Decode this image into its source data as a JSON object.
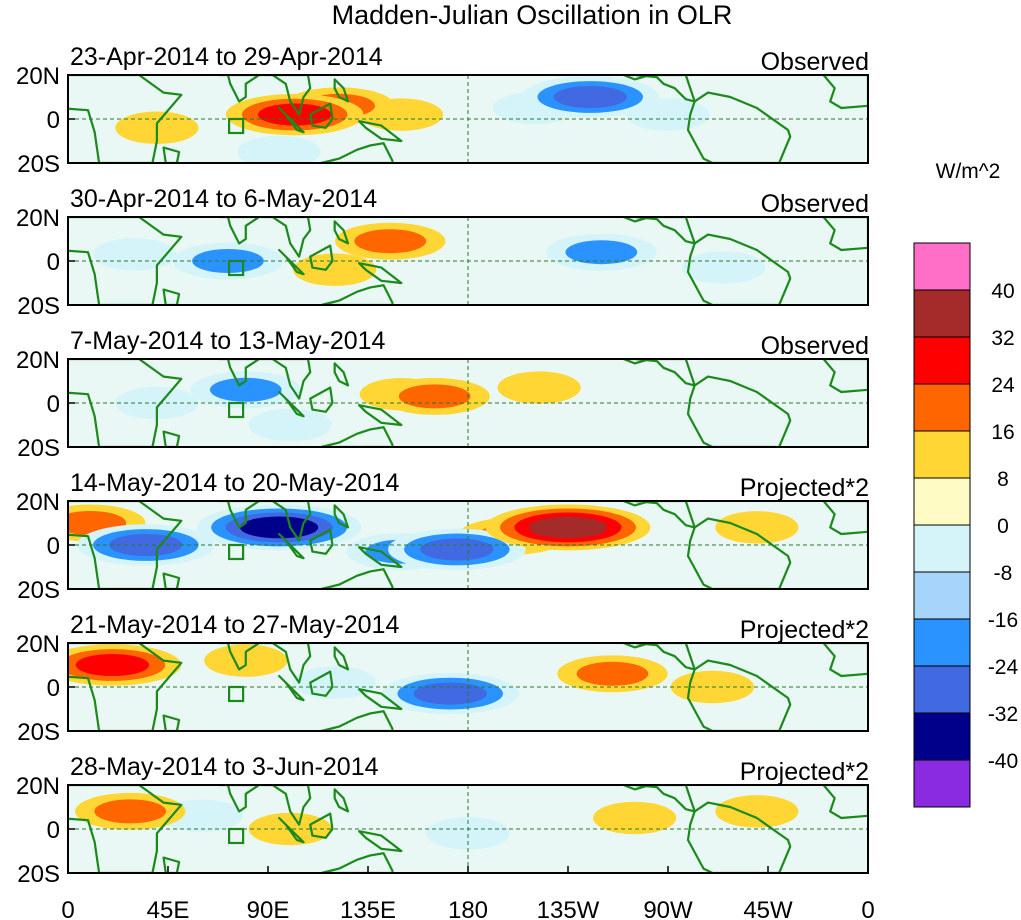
{
  "chart_data": {
    "type": "heatmap",
    "title": "Madden-Julian Oscillation in OLR",
    "units": "W/m^2",
    "x_ticks": [
      "0",
      "45E",
      "90E",
      "135E",
      "180",
      "135W",
      "90W",
      "45W",
      "0"
    ],
    "y_ticks": [
      "20N",
      "0",
      "20S"
    ],
    "colorbar": {
      "labels": [
        "40",
        "32",
        "24",
        "16",
        "8",
        "0",
        "-8",
        "-16",
        "-24",
        "-32",
        "-40"
      ],
      "colors": [
        "#ff6ec7",
        "#a52a2a",
        "#ff0000",
        "#ff6600",
        "#ffd633",
        "#fffbc4",
        "#d4f4fa",
        "#a6d4fa",
        "#2b93ff",
        "#4169e1",
        "#00008b",
        "#8a2be2"
      ]
    },
    "panels": [
      {
        "date": "23-Apr-2014 to 29-Apr-2014",
        "label": "Observed",
        "anomalies": [
          {
            "lon": 102,
            "lat": 2,
            "value": 24
          },
          {
            "lon": 122,
            "lat": 6,
            "value": 16
          },
          {
            "lon": 150,
            "lat": 2,
            "value": 8
          },
          {
            "lon": 40,
            "lat": -4,
            "value": 8
          },
          {
            "lon": 235,
            "lat": 10,
            "value": -24
          },
          {
            "lon": 210,
            "lat": 5,
            "value": -8
          },
          {
            "lon": 270,
            "lat": 2,
            "value": -8
          },
          {
            "lon": 95,
            "lat": -15,
            "value": -8
          }
        ]
      },
      {
        "date": "30-Apr-2014 to 6-May-2014",
        "label": "Observed",
        "anomalies": [
          {
            "lon": 145,
            "lat": 9,
            "value": 16
          },
          {
            "lon": 120,
            "lat": -4,
            "value": 8
          },
          {
            "lon": 72,
            "lat": 0,
            "value": -16
          },
          {
            "lon": 240,
            "lat": 4,
            "value": -16
          },
          {
            "lon": 30,
            "lat": 3,
            "value": -8
          },
          {
            "lon": 295,
            "lat": -3,
            "value": -8
          }
        ]
      },
      {
        "date": "7-May-2014 to 13-May-2014",
        "label": "Observed",
        "anomalies": [
          {
            "lon": 150,
            "lat": 4,
            "value": 8
          },
          {
            "lon": 165,
            "lat": 3,
            "value": 16
          },
          {
            "lon": 212,
            "lat": 7,
            "value": 8
          },
          {
            "lon": 80,
            "lat": 6,
            "value": -16
          },
          {
            "lon": 40,
            "lat": 0,
            "value": -8
          },
          {
            "lon": 100,
            "lat": -10,
            "value": -8
          }
        ]
      },
      {
        "date": "14-May-2014 to 20-May-2014",
        "label": "Projected*2",
        "anomalies": [
          {
            "lon": 225,
            "lat": 8,
            "value": 32
          },
          {
            "lon": 200,
            "lat": 4,
            "value": 16
          },
          {
            "lon": 95,
            "lat": 8,
            "value": -32
          },
          {
            "lon": 35,
            "lat": 0,
            "value": -24
          },
          {
            "lon": 150,
            "lat": -3,
            "value": -16
          },
          {
            "lon": 175,
            "lat": -2,
            "value": -24
          },
          {
            "lon": 10,
            "lat": 10,
            "value": 16
          },
          {
            "lon": 310,
            "lat": 8,
            "value": 8
          }
        ]
      },
      {
        "date": "21-May-2014 to 27-May-2014",
        "label": "Projected*2",
        "anomalies": [
          {
            "lon": 20,
            "lat": 10,
            "value": 24
          },
          {
            "lon": 245,
            "lat": 6,
            "value": 16
          },
          {
            "lon": 172,
            "lat": -3,
            "value": -24
          },
          {
            "lon": 120,
            "lat": 2,
            "value": -8
          },
          {
            "lon": 80,
            "lat": 12,
            "value": 8
          },
          {
            "lon": 290,
            "lat": 0,
            "value": 8
          }
        ]
      },
      {
        "date": "28-May-2014 to 3-Jun-2014",
        "label": "Projected*2",
        "anomalies": [
          {
            "lon": 28,
            "lat": 8,
            "value": 16
          },
          {
            "lon": 60,
            "lat": 6,
            "value": -8
          },
          {
            "lon": 100,
            "lat": 0,
            "value": 8
          },
          {
            "lon": 180,
            "lat": -2,
            "value": -8
          },
          {
            "lon": 255,
            "lat": 5,
            "value": 8
          },
          {
            "lon": 310,
            "lat": 8,
            "value": 8
          }
        ]
      }
    ]
  }
}
